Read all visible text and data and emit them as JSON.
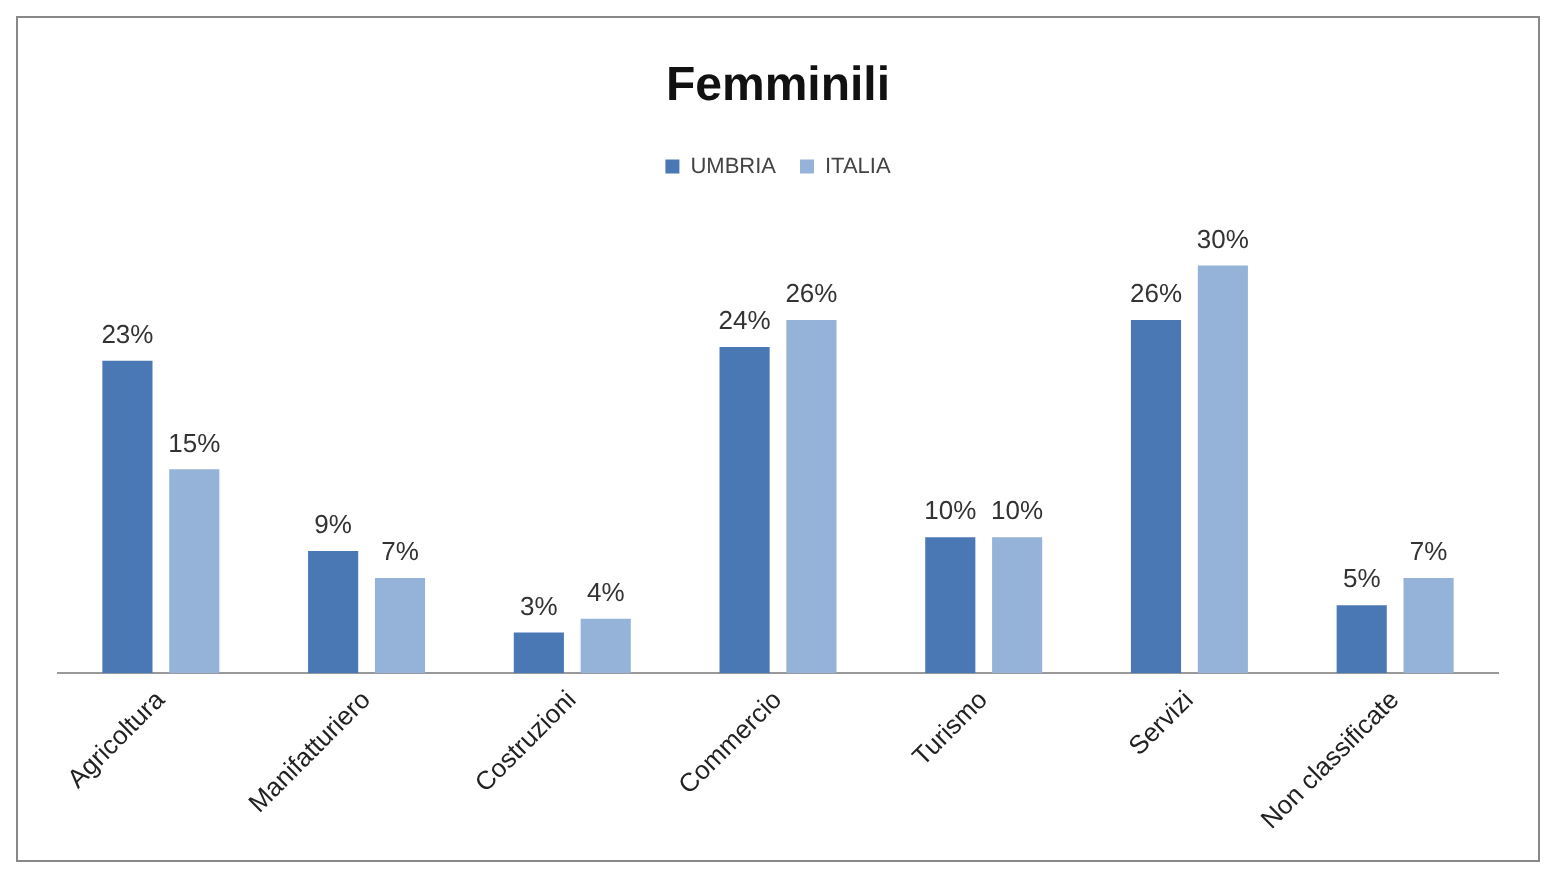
{
  "chart_data": {
    "type": "bar",
    "title": "Femminili",
    "categories": [
      "Agricoltura",
      "Manifatturiero",
      "Costruzioni",
      "Commercio",
      "Turismo",
      "Servizi",
      "Non classificate"
    ],
    "series": [
      {
        "name": "UMBRIA",
        "color": "#4a78b5",
        "values": [
          23,
          9,
          3,
          24,
          10,
          26,
          5
        ],
        "value_labels": [
          "23%",
          "9%",
          "3%",
          "24%",
          "10%",
          "26%",
          "5%"
        ]
      },
      {
        "name": "ITALIA",
        "color": "#95b3d9",
        "values": [
          15,
          7,
          4,
          26,
          10,
          30,
          7
        ],
        "value_labels": [
          "15%",
          "7%",
          "4%",
          "26%",
          "10%",
          "30%",
          "7%"
        ]
      }
    ],
    "legend": "top",
    "grid": false
  }
}
